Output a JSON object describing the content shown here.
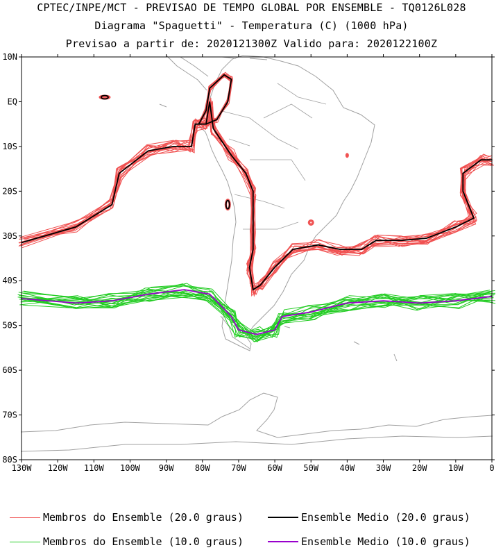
{
  "header": {
    "line1": "CPTEC/INPE/MCT - PREVISAO DE TEMPO GLOBAL POR ENSEMBLE - TQ0126L028",
    "line2": "Diagrama \"Spaguetti\" - Temperatura (C) (1000 hPa)",
    "line3": "Previsao a partir de: 2020121300Z  Valido para: 2020122100Z"
  },
  "map": {
    "lat_labels": [
      "10N",
      "EQ",
      "10S",
      "20S",
      "30S",
      "40S",
      "50S",
      "60S",
      "70S",
      "80S"
    ],
    "lon_labels": [
      "130W",
      "120W",
      "110W",
      "100W",
      "90W",
      "80W",
      "70W",
      "60W",
      "50W",
      "40W",
      "30W",
      "20W",
      "10W",
      "0"
    ],
    "lon_range": [
      -130,
      0
    ],
    "lat_range": [
      -80,
      10
    ],
    "coast_color": "#a0a0a0"
  },
  "legend": [
    {
      "label": "Membros do Ensemble (20.0 graus)",
      "color": "#f05050"
    },
    {
      "label": "Ensemble Medio (20.0 graus)",
      "color": "#000000"
    },
    {
      "label": "Membros do Ensemble (10.0 graus)",
      "color": "#22cc22"
    },
    {
      "label": "Ensemble Medio (10.0 graus)",
      "color": "#9900cc"
    }
  ]
}
